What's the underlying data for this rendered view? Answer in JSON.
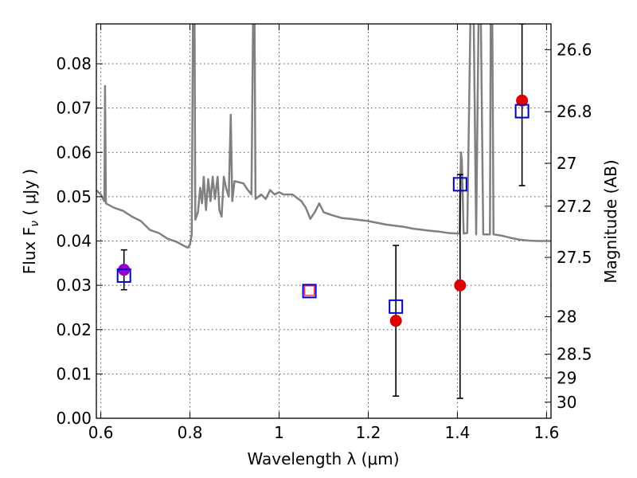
{
  "chart_data": {
    "type": "scatter",
    "xlabel": "Wavelength  λ (μm)",
    "ylabel": "Flux  F",
    "ylabel_sub": "ν",
    "ylabel_unit": "  ( μJy )",
    "y2label": "Magnitude (AB)",
    "xlim": [
      0.59,
      1.61
    ],
    "ylim": [
      0.0,
      0.089
    ],
    "grid": true,
    "x_ticks": [
      0.6,
      0.8,
      1.0,
      1.2,
      1.4,
      1.6
    ],
    "x_tick_labels": [
      "0.6",
      "0.8",
      "1",
      "1.2",
      "1.4",
      "1.6"
    ],
    "y_ticks": [
      0.0,
      0.01,
      0.02,
      0.03,
      0.04,
      0.05,
      0.06,
      0.07,
      0.08
    ],
    "y_tick_labels": [
      "0.00",
      "0.01",
      "0.02",
      "0.03",
      "0.04",
      "0.05",
      "0.06",
      "0.07",
      "0.08"
    ],
    "magnitude_ticks": [
      26.6,
      26.8,
      27.0,
      27.2,
      27.5,
      28.0,
      28.5,
      29.0,
      30.0
    ],
    "magnitude_tick_labels": [
      "26.6",
      "26.8",
      "27",
      "27.2",
      "27.5",
      "28",
      "28.5",
      "29",
      "30"
    ],
    "series": [
      {
        "type": "line",
        "color": "#808080",
        "points": [
          [
            0.59,
            0.0515
          ],
          [
            0.6,
            0.0505
          ],
          [
            0.605,
            0.0495
          ],
          [
            0.608,
            0.049
          ],
          [
            0.6095,
            0.075
          ],
          [
            0.6115,
            0.0485
          ],
          [
            0.63,
            0.0475
          ],
          [
            0.65,
            0.0468
          ],
          [
            0.67,
            0.0455
          ],
          [
            0.69,
            0.0445
          ],
          [
            0.71,
            0.0425
          ],
          [
            0.73,
            0.0418
          ],
          [
            0.75,
            0.0405
          ],
          [
            0.77,
            0.0398
          ],
          [
            0.785,
            0.039
          ],
          [
            0.795,
            0.0385
          ],
          [
            0.8,
            0.0392
          ],
          [
            0.804,
            0.0415
          ],
          [
            0.807,
            0.095
          ],
          [
            0.81,
            0.095
          ],
          [
            0.812,
            0.0448
          ],
          [
            0.818,
            0.0465
          ],
          [
            0.823,
            0.052
          ],
          [
            0.827,
            0.0485
          ],
          [
            0.831,
            0.0545
          ],
          [
            0.836,
            0.047
          ],
          [
            0.841,
            0.054
          ],
          [
            0.846,
            0.049
          ],
          [
            0.851,
            0.0545
          ],
          [
            0.856,
            0.0495
          ],
          [
            0.862,
            0.0545
          ],
          [
            0.866,
            0.047
          ],
          [
            0.871,
            0.0455
          ],
          [
            0.876,
            0.0545
          ],
          [
            0.881,
            0.052
          ],
          [
            0.887,
            0.05
          ],
          [
            0.8915,
            0.0685
          ],
          [
            0.895,
            0.049
          ],
          [
            0.9,
            0.0535
          ],
          [
            0.92,
            0.053
          ],
          [
            0.93,
            0.0515
          ],
          [
            0.938,
            0.0505
          ],
          [
            0.942,
            0.095
          ],
          [
            0.9445,
            0.095
          ],
          [
            0.947,
            0.0495
          ],
          [
            0.96,
            0.0505
          ],
          [
            0.97,
            0.0495
          ],
          [
            0.98,
            0.0515
          ],
          [
            0.99,
            0.0505
          ],
          [
            1.0,
            0.051
          ],
          [
            1.01,
            0.0505
          ],
          [
            1.03,
            0.0505
          ],
          [
            1.05,
            0.049
          ],
          [
            1.06,
            0.0475
          ],
          [
            1.07,
            0.045
          ],
          [
            1.08,
            0.0465
          ],
          [
            1.09,
            0.0485
          ],
          [
            1.1,
            0.0465
          ],
          [
            1.12,
            0.0458
          ],
          [
            1.14,
            0.0452
          ],
          [
            1.16,
            0.045
          ],
          [
            1.2,
            0.0445
          ],
          [
            1.24,
            0.0437
          ],
          [
            1.28,
            0.0432
          ],
          [
            1.3,
            0.0428
          ],
          [
            1.34,
            0.0423
          ],
          [
            1.36,
            0.0421
          ],
          [
            1.38,
            0.0418
          ],
          [
            1.4,
            0.0417
          ],
          [
            1.405,
            0.0417
          ],
          [
            1.408,
            0.06
          ],
          [
            1.41,
            0.058
          ],
          [
            1.414,
            0.0417
          ],
          [
            1.422,
            0.0418
          ],
          [
            1.43,
            0.095
          ],
          [
            1.436,
            0.095
          ],
          [
            1.442,
            0.0415
          ],
          [
            1.448,
            0.095
          ],
          [
            1.452,
            0.095
          ],
          [
            1.458,
            0.0415
          ],
          [
            1.473,
            0.0415
          ],
          [
            1.475,
            0.095
          ],
          [
            1.478,
            0.095
          ],
          [
            1.481,
            0.0415
          ],
          [
            1.5,
            0.0412
          ],
          [
            1.52,
            0.0407
          ],
          [
            1.54,
            0.0403
          ],
          [
            1.56,
            0.0401
          ],
          [
            1.58,
            0.04
          ],
          [
            1.61,
            0.04
          ]
        ]
      },
      {
        "type": "errorbar",
        "color": "#000000",
        "points": [
          {
            "x": 0.652,
            "y": 0.033,
            "low": 0.029,
            "high": 0.038
          },
          {
            "x": 1.262,
            "y": 0.022,
            "low": 0.005,
            "high": 0.039
          },
          {
            "x": 1.406,
            "y": 0.03,
            "low": 0.0045,
            "high": 0.055
          },
          {
            "x": 1.545,
            "y": 0.072,
            "low": 0.0525,
            "high": 0.089
          }
        ]
      },
      {
        "type": "markers",
        "marker": "circle",
        "color": "#dd0000",
        "points": [
          {
            "x": 0.652,
            "y": 0.0335,
            "color": "#9400d3"
          },
          {
            "x": 1.068,
            "y": 0.0288,
            "color": "#ee3355",
            "marker": "small-square"
          },
          {
            "x": 1.262,
            "y": 0.022
          },
          {
            "x": 1.406,
            "y": 0.03
          },
          {
            "x": 1.545,
            "y": 0.0717
          }
        ]
      },
      {
        "type": "markers",
        "marker": "open-square",
        "color": "#0000cc",
        "points": [
          {
            "x": 0.652,
            "y": 0.0322
          },
          {
            "x": 1.068,
            "y": 0.0287
          },
          {
            "x": 1.262,
            "y": 0.0252
          },
          {
            "x": 1.406,
            "y": 0.0528
          },
          {
            "x": 1.545,
            "y": 0.0693
          }
        ]
      }
    ]
  }
}
